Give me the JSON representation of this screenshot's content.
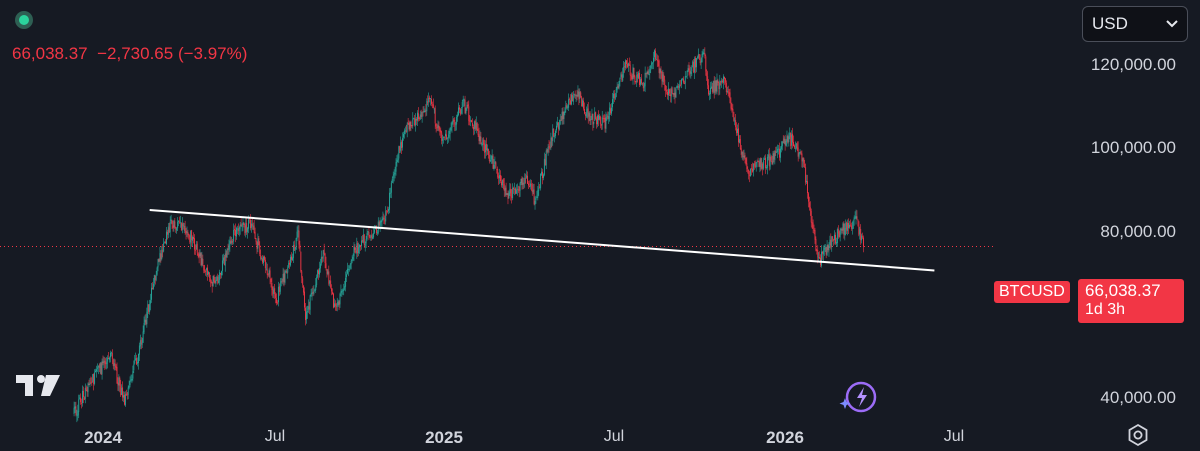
{
  "header": {
    "last_price": "66,038.37",
    "change": "−2,730.65",
    "change_pct": "(−3.97%)"
  },
  "currency": {
    "selected": "USD"
  },
  "price_tag": {
    "symbol": "BTCUSD",
    "price": "66,038.37",
    "countdown": "1d 3h"
  },
  "colors": {
    "up": "#26a69a",
    "down": "#f23645",
    "background": "#161a23",
    "trendline": "#ffffff"
  },
  "icons": {
    "logo": "tradingview-logo-icon",
    "assistant": "sparkle-assistant-icon",
    "settings": "gear-icon"
  },
  "chart_data": {
    "type": "candlestick",
    "y_axis": {
      "scale": "log",
      "ticks": [
        "120,000.00",
        "100,000.00",
        "80,000.00",
        "40,000.00"
      ],
      "tick_values": [
        120000,
        100000,
        80000,
        40000
      ],
      "range": [
        34000,
        140000
      ]
    },
    "x_axis": {
      "ticks": [
        {
          "label": "2024",
          "date": "2024-01-01",
          "bold": true
        },
        {
          "label": "Jul",
          "date": "2024-07-01",
          "bold": false
        },
        {
          "label": "2025",
          "date": "2025-01-01",
          "bold": true
        },
        {
          "label": "Jul",
          "date": "2025-07-01",
          "bold": false
        },
        {
          "label": "2026",
          "date": "2026-01-01",
          "bold": true
        },
        {
          "label": "Jul",
          "date": "2026-07-01",
          "bold": false
        }
      ],
      "range": [
        "2023-11-15",
        "2026-10-31"
      ]
    },
    "price_path": [
      [
        "2023-12-01",
        38000
      ],
      [
        "2023-12-20",
        42500
      ],
      [
        "2024-01-10",
        46000
      ],
      [
        "2024-01-23",
        39500
      ],
      [
        "2024-02-10",
        47500
      ],
      [
        "2024-02-28",
        62000
      ],
      [
        "2024-03-14",
        72000
      ],
      [
        "2024-04-01",
        69500
      ],
      [
        "2024-04-13",
        64000
      ],
      [
        "2024-05-01",
        58000
      ],
      [
        "2024-05-20",
        69000
      ],
      [
        "2024-06-07",
        71000
      ],
      [
        "2024-06-25",
        61000
      ],
      [
        "2024-07-05",
        55500
      ],
      [
        "2024-07-28",
        68500
      ],
      [
        "2024-08-05",
        52500
      ],
      [
        "2024-08-24",
        64000
      ],
      [
        "2024-09-06",
        53500
      ],
      [
        "2024-09-27",
        65500
      ],
      [
        "2024-10-29",
        72000
      ],
      [
        "2024-11-13",
        90000
      ],
      [
        "2024-11-22",
        98500
      ],
      [
        "2024-12-05",
        102000
      ],
      [
        "2024-12-17",
        106500
      ],
      [
        "2024-12-30",
        92500
      ],
      [
        "2025-01-21",
        106000
      ],
      [
        "2025-02-03",
        98000
      ],
      [
        "2025-02-26",
        84500
      ],
      [
        "2025-03-11",
        78500
      ],
      [
        "2025-03-30",
        83000
      ],
      [
        "2025-04-08",
        76500
      ],
      [
        "2025-04-25",
        94500
      ],
      [
        "2025-05-22",
        111000
      ],
      [
        "2025-06-05",
        101500
      ],
      [
        "2025-06-22",
        99500
      ],
      [
        "2025-07-14",
        120000
      ],
      [
        "2025-08-02",
        113000
      ],
      [
        "2025-08-14",
        124000
      ],
      [
        "2025-08-31",
        108500
      ],
      [
        "2025-09-18",
        117000
      ],
      [
        "2025-10-06",
        125500
      ],
      [
        "2025-10-11",
        110500
      ],
      [
        "2025-10-28",
        114500
      ],
      [
        "2025-11-21",
        84500
      ],
      [
        "2025-12-01",
        86500
      ],
      [
        "2025-12-20",
        88500
      ],
      [
        "2026-01-06",
        94500
      ],
      [
        "2026-01-20",
        89000
      ],
      [
        "2026-02-05",
        62500
      ],
      [
        "2026-02-20",
        67500
      ],
      [
        "2026-03-03",
        69500
      ],
      [
        "2026-03-18",
        72500
      ],
      [
        "2026-03-26",
        66038
      ]
    ],
    "last_close": 66038.37,
    "trendline": {
      "start": [
        "2024-02-20",
        74500
      ],
      "end": [
        "2026-06-10",
        61000
      ]
    }
  }
}
